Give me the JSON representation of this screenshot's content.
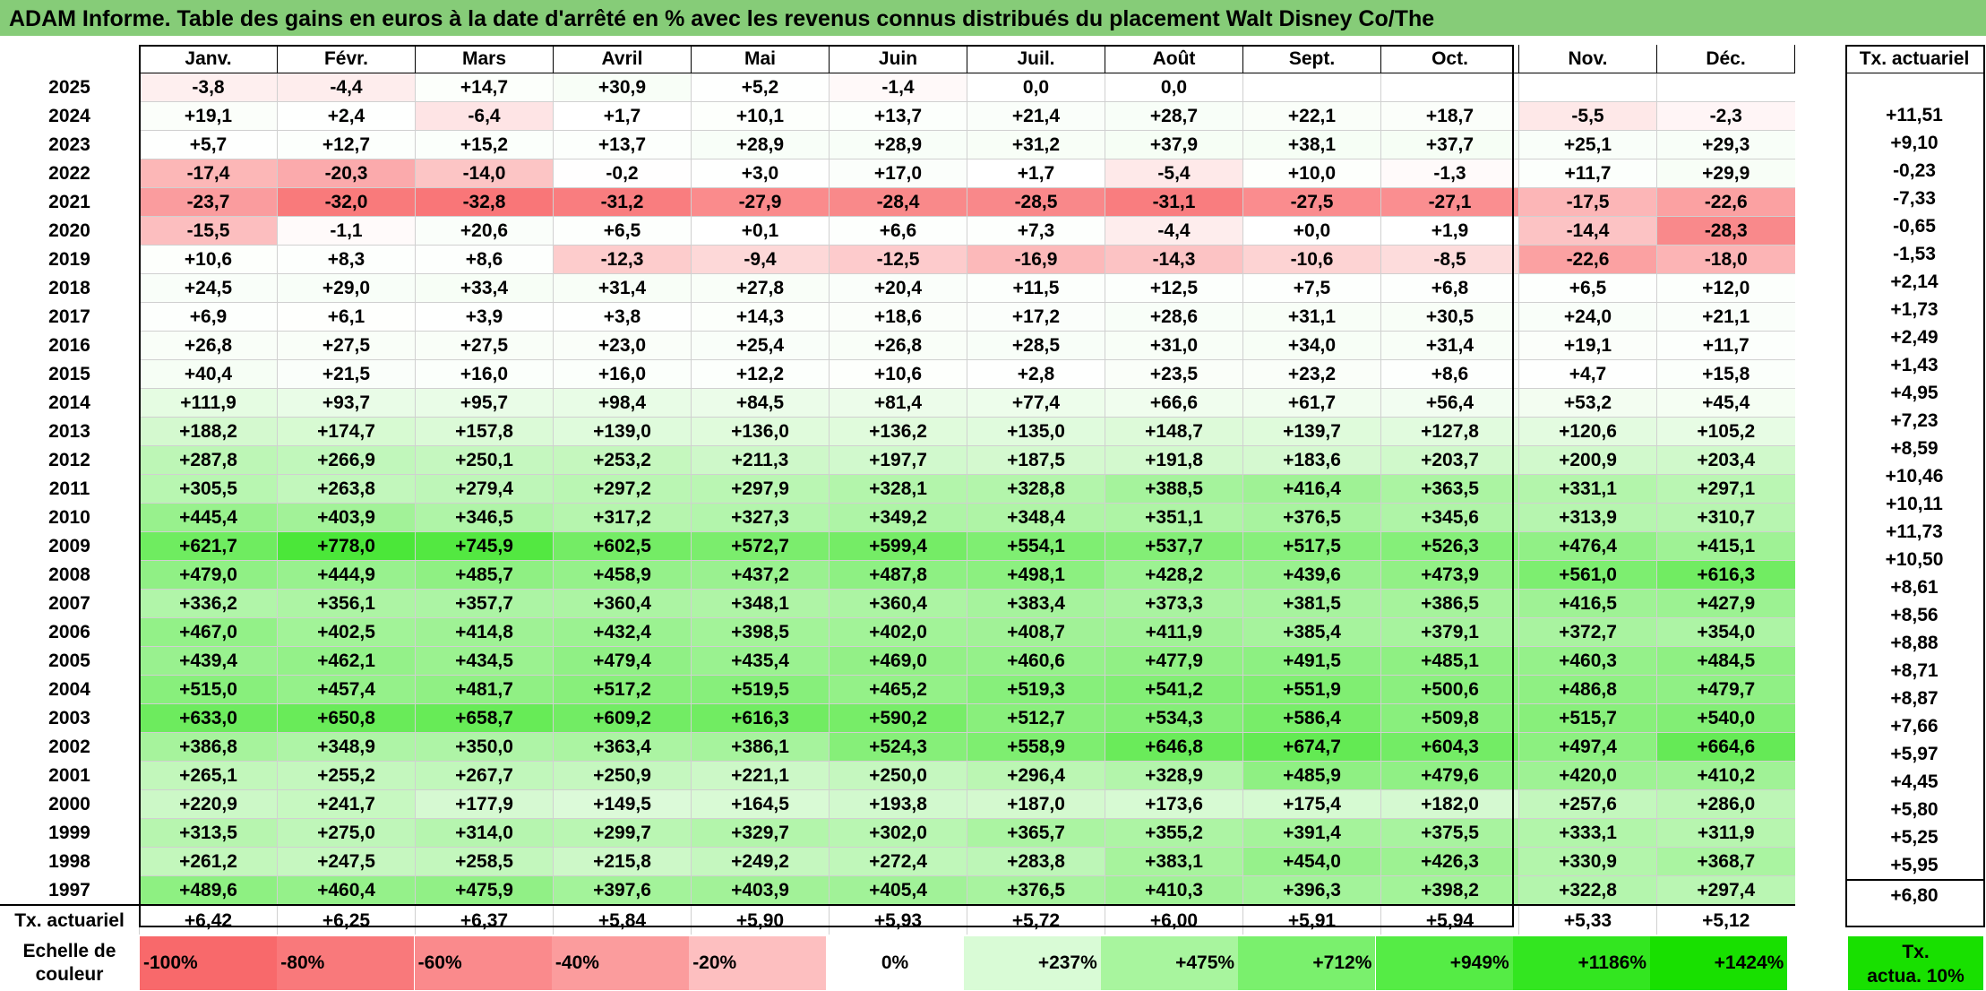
{
  "title": "ADAM Informe. Table des gains en euros à la date d'arrêté en % avec les revenus connus distribués du placement Walt Disney Co/The",
  "months": [
    "Janv.",
    "Févr.",
    "Mars",
    "Avril",
    "Mai",
    "Juin",
    "Juil.",
    "Août",
    "Sept.",
    "Oct.",
    "Nov.",
    "Déc."
  ],
  "actuariel_header": "Tx. actuariel",
  "rows": [
    {
      "year": "2025",
      "vals": [
        "-3,8",
        "-4,4",
        "+14,7",
        "+30,9",
        "+5,2",
        "-1,4",
        "0,0",
        "0,0",
        "",
        "",
        "",
        ""
      ],
      "act": ""
    },
    {
      "year": "2024",
      "vals": [
        "+19,1",
        "+2,4",
        "-6,4",
        "+1,7",
        "+10,1",
        "+13,7",
        "+21,4",
        "+28,7",
        "+22,1",
        "+18,7",
        "-5,5",
        "-2,3"
      ],
      "act": "+11,51"
    },
    {
      "year": "2023",
      "vals": [
        "+5,7",
        "+12,7",
        "+15,2",
        "+13,7",
        "+28,9",
        "+28,9",
        "+31,2",
        "+37,9",
        "+38,1",
        "+37,7",
        "+25,1",
        "+29,3"
      ],
      "act": "+9,10"
    },
    {
      "year": "2022",
      "vals": [
        "-17,4",
        "-20,3",
        "-14,0",
        "-0,2",
        "+3,0",
        "+17,0",
        "+1,7",
        "-5,4",
        "+10,0",
        "-1,3",
        "+11,7",
        "+29,9"
      ],
      "act": "-0,23"
    },
    {
      "year": "2021",
      "vals": [
        "-23,7",
        "-32,0",
        "-32,8",
        "-31,2",
        "-27,9",
        "-28,4",
        "-28,5",
        "-31,1",
        "-27,5",
        "-27,1",
        "-17,5",
        "-22,6"
      ],
      "act": "-7,33"
    },
    {
      "year": "2020",
      "vals": [
        "-15,5",
        "-1,1",
        "+20,6",
        "+6,5",
        "+0,1",
        "+6,6",
        "+7,3",
        "-4,4",
        "+0,0",
        "+1,9",
        "-14,4",
        "-28,3"
      ],
      "act": "-0,65"
    },
    {
      "year": "2019",
      "vals": [
        "+10,6",
        "+8,3",
        "+8,6",
        "-12,3",
        "-9,4",
        "-12,5",
        "-16,9",
        "-14,3",
        "-10,6",
        "-8,5",
        "-22,6",
        "-18,0"
      ],
      "act": "-1,53"
    },
    {
      "year": "2018",
      "vals": [
        "+24,5",
        "+29,0",
        "+33,4",
        "+31,4",
        "+27,8",
        "+20,4",
        "+11,5",
        "+12,5",
        "+7,5",
        "+6,8",
        "+6,5",
        "+12,0"
      ],
      "act": "+2,14"
    },
    {
      "year": "2017",
      "vals": [
        "+6,9",
        "+6,1",
        "+3,9",
        "+3,8",
        "+14,3",
        "+18,6",
        "+17,2",
        "+28,6",
        "+31,1",
        "+30,5",
        "+24,0",
        "+21,1"
      ],
      "act": "+1,73"
    },
    {
      "year": "2016",
      "vals": [
        "+26,8",
        "+27,5",
        "+27,5",
        "+23,0",
        "+25,4",
        "+26,8",
        "+28,5",
        "+31,0",
        "+34,0",
        "+31,4",
        "+19,1",
        "+11,7"
      ],
      "act": "+2,49"
    },
    {
      "year": "2015",
      "vals": [
        "+40,4",
        "+21,5",
        "+16,0",
        "+16,0",
        "+12,2",
        "+10,6",
        "+2,8",
        "+23,5",
        "+23,2",
        "+8,6",
        "+4,7",
        "+15,8"
      ],
      "act": "+1,43"
    },
    {
      "year": "2014",
      "vals": [
        "+111,9",
        "+93,7",
        "+95,7",
        "+98,4",
        "+84,5",
        "+81,4",
        "+77,4",
        "+66,6",
        "+61,7",
        "+56,4",
        "+53,2",
        "+45,4"
      ],
      "act": "+4,95"
    },
    {
      "year": "2013",
      "vals": [
        "+188,2",
        "+174,7",
        "+157,8",
        "+139,0",
        "+136,0",
        "+136,2",
        "+135,0",
        "+148,7",
        "+139,7",
        "+127,8",
        "+120,6",
        "+105,2"
      ],
      "act": "+7,23"
    },
    {
      "year": "2012",
      "vals": [
        "+287,8",
        "+266,9",
        "+250,1",
        "+253,2",
        "+211,3",
        "+197,7",
        "+187,5",
        "+191,8",
        "+183,6",
        "+203,7",
        "+200,9",
        "+203,4"
      ],
      "act": "+8,59"
    },
    {
      "year": "2011",
      "vals": [
        "+305,5",
        "+263,8",
        "+279,4",
        "+297,2",
        "+297,9",
        "+328,1",
        "+328,8",
        "+388,5",
        "+416,4",
        "+363,5",
        "+331,1",
        "+297,1"
      ],
      "act": "+10,46"
    },
    {
      "year": "2010",
      "vals": [
        "+445,4",
        "+403,9",
        "+346,5",
        "+317,2",
        "+327,3",
        "+349,2",
        "+348,4",
        "+351,1",
        "+376,5",
        "+345,6",
        "+313,9",
        "+310,7"
      ],
      "act": "+10,11"
    },
    {
      "year": "2009",
      "vals": [
        "+621,7",
        "+778,0",
        "+745,9",
        "+602,5",
        "+572,7",
        "+599,4",
        "+554,1",
        "+537,7",
        "+517,5",
        "+526,3",
        "+476,4",
        "+415,1"
      ],
      "act": "+11,73"
    },
    {
      "year": "2008",
      "vals": [
        "+479,0",
        "+444,9",
        "+485,7",
        "+458,9",
        "+437,2",
        "+487,8",
        "+498,1",
        "+428,2",
        "+439,6",
        "+473,9",
        "+561,0",
        "+616,3"
      ],
      "act": "+10,50"
    },
    {
      "year": "2007",
      "vals": [
        "+336,2",
        "+356,1",
        "+357,7",
        "+360,4",
        "+348,1",
        "+360,4",
        "+383,4",
        "+373,3",
        "+381,5",
        "+386,5",
        "+416,5",
        "+427,9"
      ],
      "act": "+8,61"
    },
    {
      "year": "2006",
      "vals": [
        "+467,0",
        "+402,5",
        "+414,8",
        "+432,4",
        "+398,5",
        "+402,0",
        "+408,7",
        "+411,9",
        "+385,4",
        "+379,1",
        "+372,7",
        "+354,0"
      ],
      "act": "+8,56"
    },
    {
      "year": "2005",
      "vals": [
        "+439,4",
        "+462,1",
        "+434,5",
        "+479,4",
        "+435,4",
        "+469,0",
        "+460,6",
        "+477,9",
        "+491,5",
        "+485,1",
        "+460,3",
        "+484,5"
      ],
      "act": "+8,88"
    },
    {
      "year": "2004",
      "vals": [
        "+515,0",
        "+457,4",
        "+481,7",
        "+517,2",
        "+519,5",
        "+465,2",
        "+519,3",
        "+541,2",
        "+551,9",
        "+500,6",
        "+486,8",
        "+479,7"
      ],
      "act": "+8,71"
    },
    {
      "year": "2003",
      "vals": [
        "+633,0",
        "+650,8",
        "+658,7",
        "+609,2",
        "+616,3",
        "+590,2",
        "+512,7",
        "+534,3",
        "+586,4",
        "+509,8",
        "+515,7",
        "+540,0"
      ],
      "act": "+8,87"
    },
    {
      "year": "2002",
      "vals": [
        "+386,8",
        "+348,9",
        "+350,0",
        "+363,4",
        "+386,1",
        "+524,3",
        "+558,9",
        "+646,8",
        "+674,7",
        "+604,3",
        "+497,4",
        "+664,6"
      ],
      "act": "+7,66"
    },
    {
      "year": "2001",
      "vals": [
        "+265,1",
        "+255,2",
        "+267,7",
        "+250,9",
        "+221,1",
        "+250,0",
        "+296,4",
        "+328,9",
        "+485,9",
        "+479,6",
        "+420,0",
        "+410,2"
      ],
      "act": "+5,97"
    },
    {
      "year": "2000",
      "vals": [
        "+220,9",
        "+241,7",
        "+177,9",
        "+149,5",
        "+164,5",
        "+193,8",
        "+187,0",
        "+173,6",
        "+175,4",
        "+182,0",
        "+257,6",
        "+286,0"
      ],
      "act": "+4,45"
    },
    {
      "year": "1999",
      "vals": [
        "+313,5",
        "+275,0",
        "+314,0",
        "+299,7",
        "+329,7",
        "+302,0",
        "+365,7",
        "+355,2",
        "+391,4",
        "+375,5",
        "+333,1",
        "+311,9"
      ],
      "act": "+5,80"
    },
    {
      "year": "1998",
      "vals": [
        "+261,2",
        "+247,5",
        "+258,5",
        "+215,8",
        "+249,2",
        "+272,4",
        "+283,8",
        "+383,1",
        "+454,0",
        "+426,3",
        "+330,9",
        "+368,7"
      ],
      "act": "+5,25"
    },
    {
      "year": "1997",
      "vals": [
        "+489,6",
        "+460,4",
        "+475,9",
        "+397,6",
        "+403,9",
        "+405,4",
        "+376,5",
        "+410,3",
        "+396,3",
        "+398,2",
        "+322,8",
        "+297,4"
      ],
      "act": "+5,95"
    }
  ],
  "footer": {
    "label": "Tx. actuariel",
    "vals": [
      "+6,42",
      "+6,25",
      "+6,37",
      "+5,84",
      "+5,90",
      "+5,93",
      "+5,72",
      "+6,00",
      "+5,91",
      "+5,94",
      "+5,33",
      "+5,12"
    ],
    "act": "+6,80"
  },
  "scale": {
    "label_line1": "Echelle de",
    "label_line2": "couleur",
    "items": [
      {
        "text": "-100%",
        "color": "#f8696b",
        "align": "left"
      },
      {
        "text": "-80%",
        "color": "#f9797b",
        "align": "left"
      },
      {
        "text": "-60%",
        "color": "#fa8a8c",
        "align": "left"
      },
      {
        "text": "-40%",
        "color": "#fb9c9d",
        "align": "left"
      },
      {
        "text": "-20%",
        "color": "#fdbfc0",
        "align": "left"
      },
      {
        "text": "0%",
        "color": "#ffffff",
        "align": "center"
      },
      {
        "text": "+237%",
        "color": "#d9fbd6",
        "align": "right"
      },
      {
        "text": "+475%",
        "color": "#a8f59e",
        "align": "right"
      },
      {
        "text": "+712%",
        "color": "#7af06d",
        "align": "right"
      },
      {
        "text": "+949%",
        "color": "#55ec45",
        "align": "right"
      },
      {
        "text": "+1186%",
        "color": "#33e620",
        "align": "right"
      },
      {
        "text": "+1424%",
        "color": "#18e000",
        "align": "right"
      }
    ],
    "act_line1": "Tx.",
    "act_line2": "actua. 10%",
    "act_color": "#18e000"
  }
}
